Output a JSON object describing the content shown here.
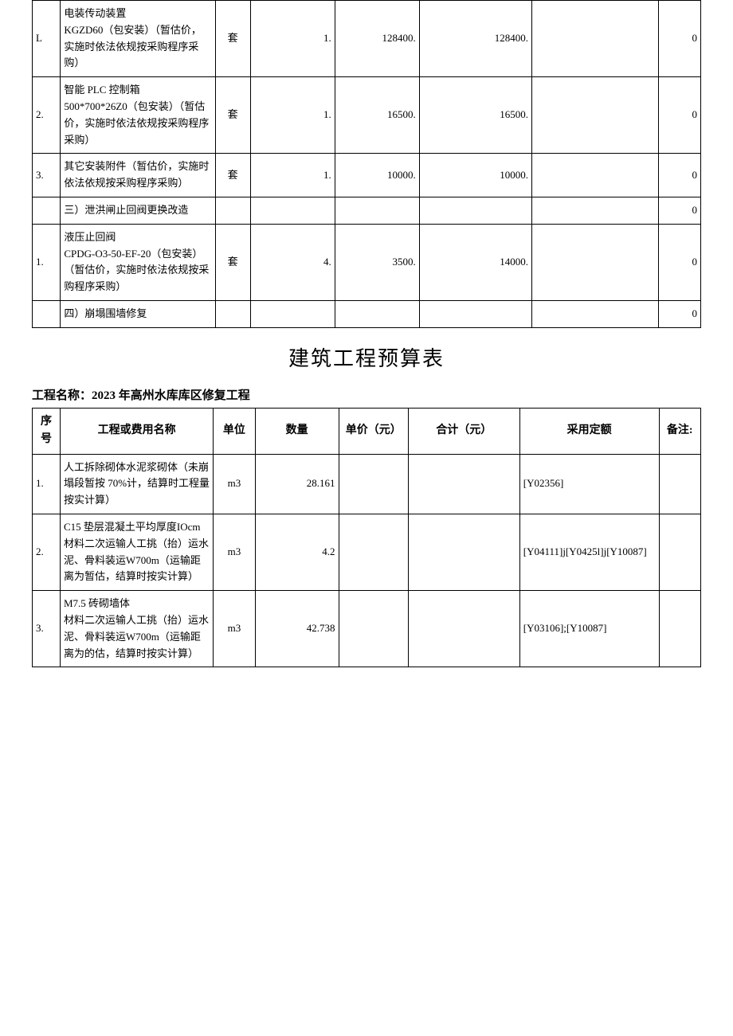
{
  "table1": {
    "rows": [
      {
        "idx": "L",
        "name": "电装传动装置\nKGZD60（包安装）（暂估价，实施时依法依规按采购程序采购）",
        "unit": "套",
        "qty": "1.",
        "price": "128400.",
        "total": "128400.",
        "quota": "",
        "note": "0"
      },
      {
        "idx": "2.",
        "name": "智能 PLC 控制箱\n500*700*26Z0（包安装）（暂估价，实施时依法依规按采购程序采购）",
        "unit": "套",
        "qty": "1.",
        "price": "16500.",
        "total": "16500.",
        "quota": "",
        "note": "0"
      },
      {
        "idx": "3.",
        "name": "其它安装附件（暂估价，实施时依法依规按采购程序采购）",
        "unit": "套",
        "qty": "1.",
        "price": "10000.",
        "total": "10000.",
        "quota": "",
        "note": "0"
      },
      {
        "idx": "",
        "name": "三）泄洪闸止回阀更换改造",
        "unit": "",
        "qty": "",
        "price": "",
        "total": "",
        "quota": "",
        "note": "0"
      },
      {
        "idx": "1.",
        "name": "液压止回阀\nCPDG-O3-50-EF-20（包安装）（暂估价，实施时依法依规按采购程序采购）",
        "unit": "套",
        "qty": "4.",
        "price": "3500.",
        "total": "14000.",
        "quota": "",
        "note": "0"
      },
      {
        "idx": "",
        "name": "四）崩塌围墙修复",
        "unit": "",
        "qty": "",
        "price": "",
        "total": "",
        "quota": "",
        "note": "0"
      }
    ]
  },
  "section_title": "建筑工程预算表",
  "project_label": "工程名称：2023 年高州水库库区修复工程",
  "table2": {
    "headers": {
      "idx": "序号",
      "name": "工程或费用名称",
      "unit": "单位",
      "qty": "数量",
      "price": "单价（元）",
      "total": "合计（元）",
      "quota": "采用定额",
      "note": "备注:"
    },
    "rows": [
      {
        "idx": "1.",
        "name": "人工拆除砌体水泥浆砌体（未崩塌段暂按 70%计，结算时工程量按实计算）",
        "unit": "m3",
        "qty": "28.161",
        "price": "",
        "total": "",
        "quota": "[Y02356]",
        "note": ""
      },
      {
        "idx": "2.",
        "name": "C15 垫层混凝土平均厚度IOcm\n材料二次运输人工挑（抬）运水泥、骨料装运W700m（运输距离为暂估，结算时按实计算）",
        "unit": "m3",
        "qty": "4.2",
        "price": "",
        "total": "",
        "quota": "[Y04111]j[Y0425l]j[Y10087]",
        "note": ""
      },
      {
        "idx": "3.",
        "name": "M7.5 砖砌墙体\n材料二次运输人工挑（抬）运水泥、骨料装运W700m（运输距离为的估，结算时按实计算）",
        "unit": "m3",
        "qty": "42.738",
        "price": "",
        "total": "",
        "quota": "[Y03106];[Y10087]",
        "note": ""
      }
    ]
  }
}
